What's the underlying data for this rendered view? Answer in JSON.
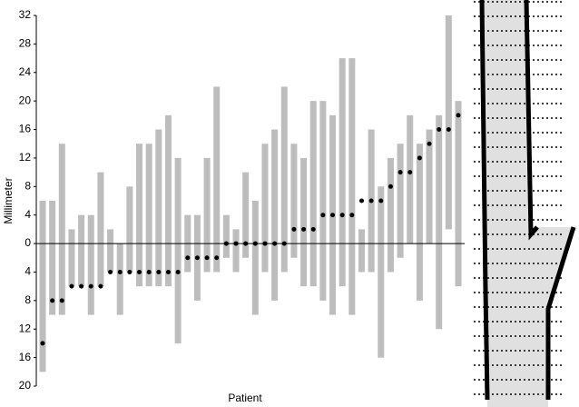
{
  "chart_data": {
    "type": "floating-bar",
    "ylabel": "Millimeter",
    "xlabel": "Patient",
    "ylim": [
      -20,
      32
    ],
    "yticks": [
      32,
      28,
      24,
      20,
      16,
      12,
      8,
      4,
      0,
      {
        "value": -4,
        "label": "4"
      },
      {
        "value": -8,
        "label": "8"
      },
      {
        "value": -12,
        "label": "12"
      },
      {
        "value": -16,
        "label": "16"
      },
      {
        "value": -20,
        "label": "20"
      }
    ],
    "bar_color": "#bdbdbd",
    "dot_color": "#000000",
    "highs": [
      6,
      6,
      14,
      2,
      4,
      4,
      10,
      2,
      0,
      8,
      14,
      14,
      16,
      18,
      12,
      4,
      4,
      12,
      22,
      4,
      2,
      10,
      6,
      14,
      16,
      22,
      14,
      12,
      20,
      20,
      18,
      26,
      26,
      2,
      16,
      8,
      12,
      14,
      18,
      14,
      16,
      18,
      32,
      20
    ],
    "lows": [
      -18,
      -10,
      -10,
      -6,
      -6,
      -10,
      -6,
      -4,
      -10,
      -4,
      -6,
      -6,
      -6,
      -6,
      -14,
      -4,
      -8,
      -4,
      -4,
      -2,
      -4,
      -2,
      -10,
      -4,
      -8,
      -4,
      -2,
      -6,
      -6,
      -8,
      -10,
      -6,
      -10,
      -4,
      -4,
      -16,
      -4,
      -2,
      0,
      -8,
      0,
      -12,
      2,
      -6
    ],
    "values": [
      -14,
      -8,
      -8,
      -6,
      -6,
      -6,
      -6,
      -4,
      -4,
      -4,
      -4,
      -4,
      -4,
      -4,
      -4,
      -2,
      -2,
      -2,
      -2,
      0,
      0,
      0,
      0,
      0,
      0,
      0,
      2,
      2,
      2,
      4,
      4,
      4,
      4,
      6,
      6,
      6,
      8,
      10,
      10,
      12,
      14,
      16,
      16,
      18
    ]
  }
}
